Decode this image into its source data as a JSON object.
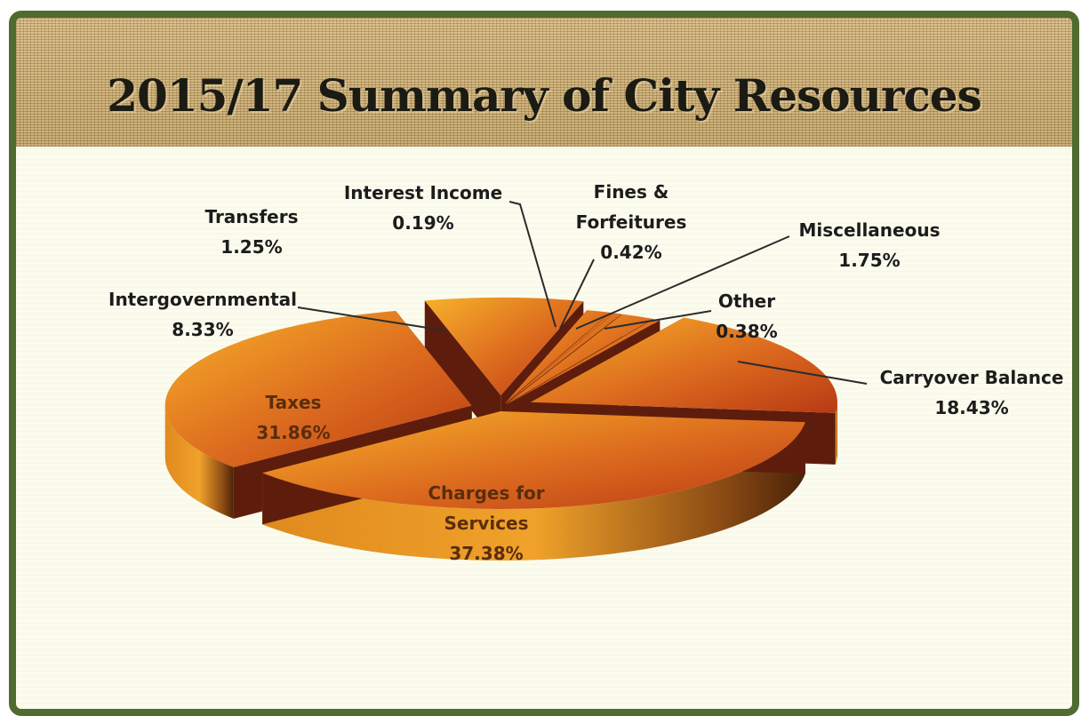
{
  "title": "2015/17 Summary of City Resources",
  "colors": {
    "frame": "#4f6b2f",
    "slice_light": "#f2a825",
    "slice_dark": "#c9421a",
    "side": "#5e1d0c"
  },
  "chart_data": {
    "type": "pie",
    "title": "2015/17 Summary of City Resources",
    "style": "3d-exploded",
    "legend": "none",
    "slices": [
      {
        "label": "Carryover Balance",
        "value": 18.43,
        "value_label": "18.43%"
      },
      {
        "label": "Charges for Services",
        "value": 37.38,
        "value_label": "37.38%"
      },
      {
        "label": "Taxes",
        "value": 31.86,
        "value_label": "31.86%"
      },
      {
        "label": "Intergovernmental",
        "value": 8.33,
        "value_label": "8.33%"
      },
      {
        "label": "Transfers",
        "value": 1.25,
        "value_label": "1.25%"
      },
      {
        "label": "Interest Income",
        "value": 0.19,
        "value_label": "0.19%"
      },
      {
        "label": "Fines & Forfeitures",
        "value": 0.42,
        "value_label": "0.42%"
      },
      {
        "label": "Miscellaneous",
        "value": 1.75,
        "value_label": "1.75%"
      },
      {
        "label": "Other",
        "value": 0.38,
        "value_label": "0.38%"
      }
    ]
  }
}
